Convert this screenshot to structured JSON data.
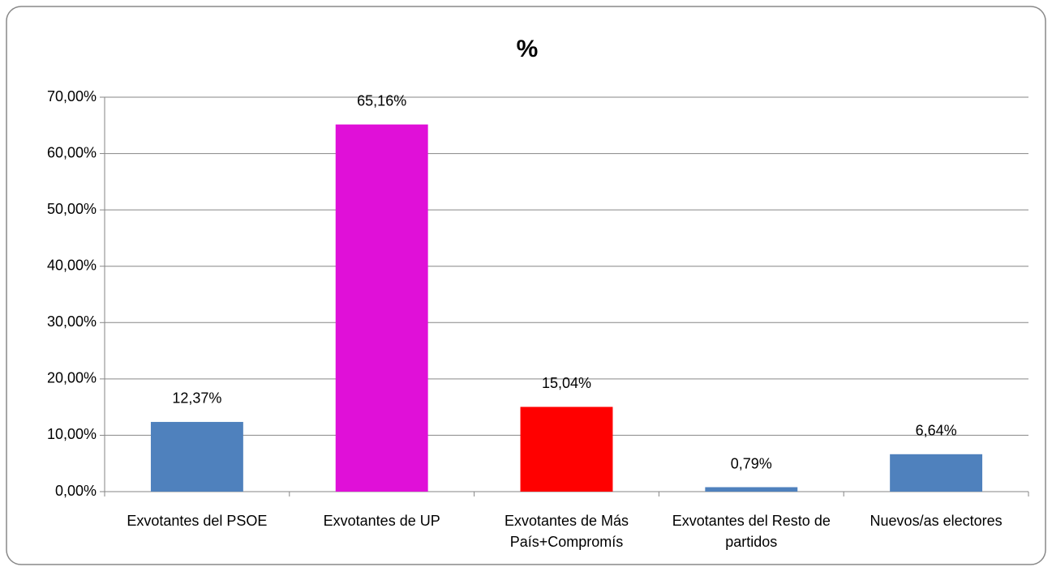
{
  "chart_data": {
    "type": "bar",
    "title": "%",
    "categories": [
      "Exvotantes del PSOE",
      "Exvotantes de UP",
      "Exvotantes de Más País+Compromís",
      "Exvotantes del Resto de partidos",
      "Nuevos/as electores"
    ],
    "values": [
      12.37,
      65.16,
      15.04,
      0.79,
      6.64
    ],
    "value_labels": [
      "12,37%",
      "65,16%",
      "15,04%",
      "0,79%",
      "6,64%"
    ],
    "colors": [
      "#4f81bd",
      "#e010d8",
      "#ff0000",
      "#4f81bd",
      "#4f81bd"
    ],
    "ylim": [
      0,
      70
    ],
    "yticks": [
      {
        "value": 0,
        "label": "0,00%"
      },
      {
        "value": 10,
        "label": "10,00%"
      },
      {
        "value": 20,
        "label": "20,00%"
      },
      {
        "value": 30,
        "label": "30,00%"
      },
      {
        "value": 40,
        "label": "40,00%"
      },
      {
        "value": 50,
        "label": "50,00%"
      },
      {
        "value": 60,
        "label": "60,00%"
      },
      {
        "value": 70,
        "label": "70,00%"
      }
    ],
    "grid": true
  }
}
